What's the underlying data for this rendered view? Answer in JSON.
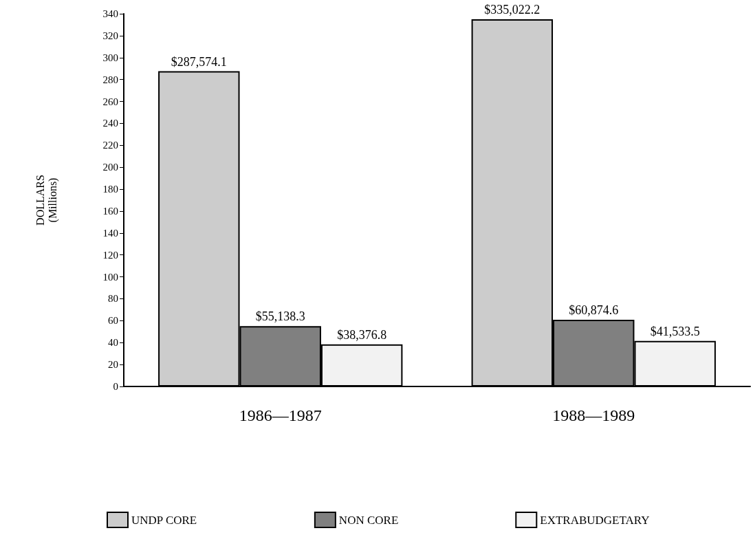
{
  "chart_data": {
    "type": "bar",
    "ylabel": "DOLLARS\n(Millions)",
    "categories": [
      "1986—1987",
      "1988—1989"
    ],
    "series": [
      {
        "name": "UNDP CORE",
        "color": "#cccccc",
        "values": [
          287.6,
          335.0
        ]
      },
      {
        "name": "NON CORE",
        "color": "#808080",
        "values": [
          55.1,
          60.9
        ]
      },
      {
        "name": "EXTRABUDGETARY",
        "color": "#f2f2f2",
        "values": [
          38.4,
          41.5
        ]
      }
    ],
    "annotations": [
      "$287,574.1",
      "$335,022.2",
      "$55,138.3",
      "$60,874.6",
      "$38,376.8",
      "$41,533.5"
    ],
    "ylim": [
      0,
      340
    ],
    "yticks": [
      0,
      20,
      40,
      60,
      80,
      100,
      120,
      140,
      160,
      180,
      200,
      220,
      240,
      260,
      280,
      300,
      320,
      340
    ],
    "grid": false,
    "legend": "bottom"
  }
}
